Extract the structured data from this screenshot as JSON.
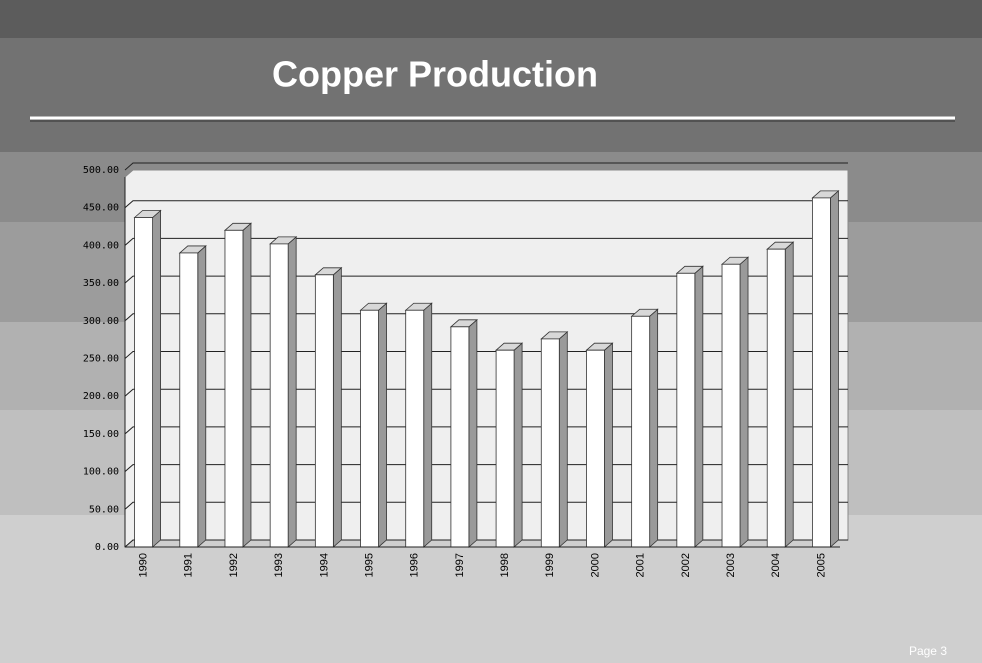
{
  "chart_data": {
    "type": "bar",
    "title": "Copper Production",
    "categories": [
      "1990",
      "1991",
      "1992",
      "1993",
      "1994",
      "1995",
      "1996",
      "1997",
      "1998",
      "1999",
      "2000",
      "2001",
      "2002",
      "2003",
      "2004",
      "2005"
    ],
    "values": [
      437,
      390,
      420,
      402,
      361,
      314,
      314,
      292,
      261,
      276,
      261,
      306,
      363,
      375,
      395,
      463
    ],
    "color": "#ffffff",
    "ylim": [
      0,
      500
    ],
    "yticks": [
      {
        "value": 0,
        "label": "0.00"
      },
      {
        "value": 50,
        "label": "50.00"
      },
      {
        "value": 100,
        "label": "100.00"
      },
      {
        "value": 150,
        "label": "150.00"
      },
      {
        "value": 200,
        "label": "200.00"
      },
      {
        "value": 250,
        "label": "250.00"
      },
      {
        "value": 300,
        "label": "300.00"
      },
      {
        "value": 350,
        "label": "350.00"
      },
      {
        "value": 400,
        "label": "400.00"
      },
      {
        "value": 450,
        "label": "450.00"
      },
      {
        "value": 500,
        "label": "500.00"
      }
    ],
    "grid": true
  },
  "footer": {
    "page": "Page 3"
  }
}
